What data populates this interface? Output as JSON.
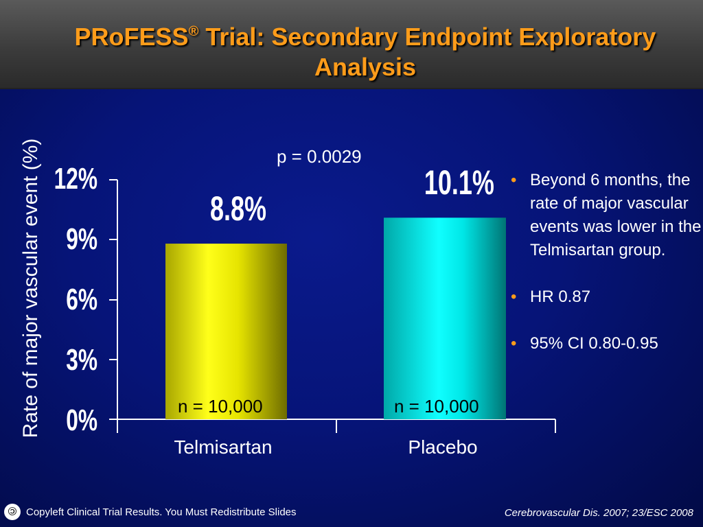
{
  "slide": {
    "title_brand": "PRoFESS",
    "title_reg": "®",
    "title_rest": " Trial: Secondary Endpoint Exploratory Analysis",
    "p_value": "p = 0.0029",
    "bullets": [
      "Beyond 6 months, the rate of major vascular events was lower in the Telmisartan group.",
      "HR 0.87",
      "95% CI 0.80-0.95"
    ],
    "footer_left": "Copyleft Clinical Trial Results. You Must Redistribute Slides",
    "footer_right": "Cerebrovascular Dis. 2007; 23/ESC 2008",
    "colors": {
      "title": "#ff9c1a",
      "background": "#0a1a8c",
      "bar_telmisartan": "#e8e600",
      "bar_placebo": "#00e8e8"
    }
  },
  "chart_data": {
    "type": "bar",
    "title": "",
    "ylabel": "Rate of major vascular event  (%)",
    "xlabel": "",
    "ylim": [
      0,
      12
    ],
    "yticks": [
      0,
      3,
      6,
      9,
      12
    ],
    "ytick_labels": [
      "0%",
      "3%",
      "6%",
      "9%",
      "12%"
    ],
    "categories": [
      "Telmisartan",
      "Placebo"
    ],
    "values": [
      8.8,
      10.1
    ],
    "value_labels": [
      "8.8%",
      "10.1%"
    ],
    "n_labels": [
      "n = 10,000",
      "n = 10,000"
    ],
    "grid": false,
    "legend": "none"
  }
}
